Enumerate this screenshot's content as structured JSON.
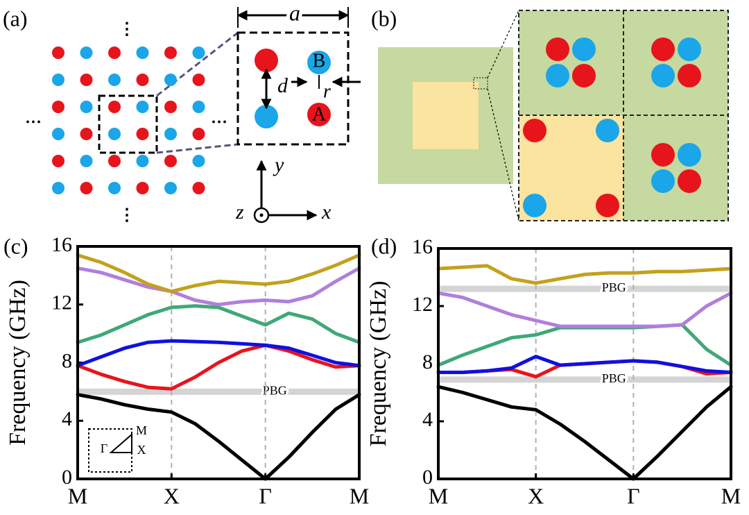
{
  "panel_a": {
    "label": "(a)",
    "lattice_label": "a",
    "d_label": "d",
    "r_label": "r",
    "site_a": "A",
    "site_b": "B",
    "axis_x": "x",
    "axis_y": "y",
    "axis_z": "z"
  },
  "panel_b": {
    "label": "(b)"
  },
  "chart_data": [
    {
      "type": "line",
      "panel_label": "(c)",
      "ylabel": "Frequency (GHz)",
      "x": [
        0,
        0.25,
        0.5,
        0.75,
        1,
        1.25,
        1.5,
        1.75,
        2,
        2.25,
        2.5,
        2.75,
        3
      ],
      "xlim": [
        0,
        3
      ],
      "xticks": [
        {
          "value": 0,
          "label": "M"
        },
        {
          "value": 1,
          "label": "X"
        },
        {
          "value": 2,
          "label": "Γ"
        },
        {
          "value": 3,
          "label": "M"
        }
      ],
      "ylim": [
        0,
        16
      ],
      "yticks": [
        0,
        4,
        8,
        12,
        16
      ],
      "gaps": [
        {
          "value": 6,
          "label": "PBG"
        }
      ],
      "inset_labels": {
        "gamma": "Γ",
        "x": "X",
        "m": "M"
      },
      "series": [
        {
          "color": "#000000",
          "values": [
            5.8,
            5.5,
            5.1,
            4.8,
            4.6,
            3.8,
            2.6,
            1.3,
            0,
            1.5,
            3.2,
            4.8,
            5.8
          ]
        },
        {
          "color": "#e8141c",
          "values": [
            7.8,
            7.2,
            6.7,
            6.3,
            6.2,
            7.0,
            8.0,
            8.8,
            9.2,
            8.8,
            8.2,
            7.7,
            7.8
          ]
        },
        {
          "color": "#1010e0",
          "values": [
            7.8,
            8.4,
            9.0,
            9.4,
            9.5,
            9.45,
            9.4,
            9.3,
            9.2,
            9.0,
            8.5,
            8.0,
            7.8
          ]
        },
        {
          "color": "#3fa877",
          "values": [
            9.4,
            9.9,
            10.6,
            11.3,
            11.8,
            11.9,
            11.8,
            11.2,
            10.6,
            11.4,
            11.0,
            10.0,
            9.4
          ]
        },
        {
          "color": "#b07fdc",
          "values": [
            14.5,
            14.2,
            13.7,
            13.2,
            12.9,
            12.3,
            12.0,
            12.2,
            12.3,
            12.2,
            12.6,
            13.6,
            14.5
          ]
        },
        {
          "color": "#c4a01c",
          "values": [
            15.4,
            14.9,
            14.2,
            13.4,
            12.9,
            13.3,
            13.6,
            13.5,
            13.4,
            13.6,
            14.1,
            14.7,
            15.4
          ]
        }
      ]
    },
    {
      "type": "line",
      "panel_label": "(d)",
      "ylabel": "Frequency (GHz)",
      "x": [
        0,
        0.25,
        0.5,
        0.75,
        1,
        1.25,
        1.5,
        1.75,
        2,
        2.25,
        2.5,
        2.75,
        3
      ],
      "xlim": [
        0,
        3
      ],
      "xticks": [
        {
          "value": 0,
          "label": "M"
        },
        {
          "value": 1,
          "label": "X"
        },
        {
          "value": 2,
          "label": "Γ"
        },
        {
          "value": 3,
          "label": "M"
        }
      ],
      "ylim": [
        0,
        16
      ],
      "yticks": [
        0,
        4,
        8,
        12,
        16
      ],
      "gaps": [
        {
          "value": 6.9,
          "label": "PBG"
        },
        {
          "value": 13.2,
          "label": "PBG"
        }
      ],
      "series": [
        {
          "color": "#000000",
          "values": [
            6.4,
            6.0,
            5.5,
            5.0,
            4.8,
            3.8,
            2.6,
            1.3,
            0,
            1.6,
            3.3,
            5.0,
            6.4
          ]
        },
        {
          "color": "#e8141c",
          "values": [
            7.4,
            7.4,
            7.5,
            7.6,
            7.1,
            7.9,
            8.0,
            8.1,
            8.2,
            8.1,
            7.8,
            7.3,
            7.4
          ]
        },
        {
          "color": "#1010e0",
          "values": [
            7.4,
            7.4,
            7.5,
            7.7,
            8.5,
            7.9,
            8.0,
            8.1,
            8.2,
            8.1,
            7.8,
            7.5,
            7.4
          ]
        },
        {
          "color": "#3fa877",
          "values": [
            7.9,
            8.6,
            9.2,
            9.8,
            10.0,
            10.5,
            10.5,
            10.5,
            10.5,
            10.6,
            10.7,
            9.0,
            7.9
          ]
        },
        {
          "color": "#b07fdc",
          "values": [
            12.9,
            12.6,
            12.0,
            11.4,
            11.0,
            10.6,
            10.6,
            10.6,
            10.6,
            10.6,
            10.7,
            12.0,
            12.9
          ]
        },
        {
          "color": "#c4a01c",
          "values": [
            14.6,
            14.7,
            14.8,
            13.9,
            13.6,
            13.9,
            14.2,
            14.3,
            14.3,
            14.4,
            14.4,
            14.5,
            14.6
          ]
        }
      ]
    }
  ]
}
